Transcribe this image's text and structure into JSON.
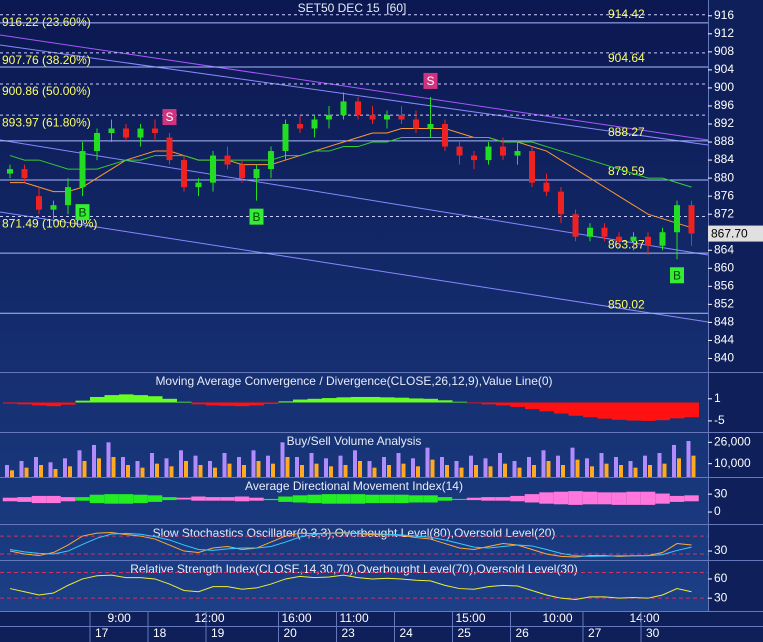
{
  "chart_data": [
    {
      "type": "candlestick",
      "title": "SET50 DEC 15  [60]",
      "categories": [
        null,
        null,
        null,
        null,
        null,
        null,
        null,
        "9:00",
        null,
        null,
        null,
        null,
        null,
        "12:00",
        null,
        null,
        null,
        null,
        null,
        "16:00",
        null,
        null,
        null,
        "11:00",
        null,
        null,
        null,
        null,
        null,
        null,
        null,
        "15:00",
        null,
        null,
        null,
        null,
        null,
        "10:00",
        null,
        null,
        null,
        null,
        null,
        "14:00",
        null,
        null,
        null,
        null
      ],
      "dates": [
        null,
        null,
        null,
        null,
        null,
        null,
        "17",
        null,
        null,
        null,
        "18",
        null,
        null,
        null,
        "19",
        null,
        null,
        null,
        null,
        "20",
        null,
        null,
        null,
        "23",
        null,
        null,
        null,
        "24",
        null,
        null,
        null,
        "25",
        null,
        null,
        null,
        "26",
        null,
        null,
        null,
        null,
        "27",
        null,
        null,
        null,
        "30",
        null,
        null,
        null
      ],
      "open": [
        881,
        882,
        876,
        873,
        874,
        878,
        886,
        890,
        891,
        889,
        891,
        889,
        884,
        878,
        879,
        885,
        883,
        880,
        882,
        886,
        892,
        891,
        893,
        894,
        897,
        894,
        893,
        894,
        893,
        891,
        892,
        887,
        885,
        884,
        887,
        885,
        886,
        879,
        877,
        872,
        867,
        869,
        867,
        866,
        867,
        865,
        868,
        874
      ],
      "high": [
        883,
        883,
        878,
        875,
        880,
        888,
        891,
        893,
        892,
        892,
        893,
        890,
        885,
        880,
        886,
        887,
        884,
        883,
        887,
        893,
        894,
        894,
        896,
        899,
        898,
        896,
        895,
        896,
        895,
        898,
        893,
        888,
        886,
        888,
        889,
        888,
        887,
        881,
        878,
        873,
        870,
        870,
        868,
        868,
        868,
        869,
        875,
        875
      ],
      "low": [
        880,
        879,
        872,
        871,
        872,
        876,
        884,
        888,
        888,
        887,
        888,
        883,
        877,
        876,
        877,
        882,
        879,
        875,
        880,
        884,
        890,
        889,
        891,
        893,
        893,
        892,
        891,
        892,
        890,
        889,
        886,
        883,
        882,
        883,
        884,
        883,
        878,
        876,
        870,
        866,
        866,
        866,
        865,
        864,
        863,
        864,
        862,
        865
      ],
      "close": [
        882,
        880,
        873,
        874,
        878,
        886,
        890,
        891,
        889,
        891,
        890,
        884,
        878,
        879,
        885,
        883,
        880,
        882,
        886,
        892,
        891,
        893,
        894,
        897,
        894,
        893,
        894,
        893,
        891,
        892,
        887,
        885,
        884,
        887,
        885,
        886,
        879,
        877,
        872,
        867,
        869,
        867,
        866,
        867,
        865,
        868,
        874,
        867.7
      ],
      "up_color": "#22dd22",
      "down_color": "#ee2222",
      "lines": [
        {
          "color": "#ff9933",
          "values": [
            879,
            879,
            878,
            877,
            877,
            878,
            880,
            882,
            884,
            885,
            886,
            886,
            885,
            884,
            884,
            884,
            883,
            883,
            883,
            884,
            885,
            886,
            887,
            888,
            889,
            890,
            890,
            891,
            891,
            891,
            891,
            890,
            889,
            889,
            888,
            888,
            887,
            886,
            884,
            882,
            880,
            878,
            876,
            874,
            872,
            871,
            870,
            869
          ]
        },
        {
          "color": "#33cc33",
          "values": [
            885,
            884,
            884,
            883,
            882,
            882,
            882,
            883,
            884,
            884,
            885,
            885,
            885,
            884,
            884,
            884,
            884,
            884,
            884,
            885,
            885,
            886,
            886,
            887,
            887,
            888,
            888,
            889,
            889,
            889,
            889,
            889,
            889,
            889,
            888,
            888,
            888,
            887,
            886,
            885,
            884,
            883,
            882,
            881,
            880,
            880,
            879,
            878
          ]
        }
      ],
      "signals": [
        null,
        null,
        null,
        null,
        null,
        "B",
        null,
        null,
        null,
        null,
        null,
        "S",
        null,
        null,
        null,
        null,
        null,
        "B",
        null,
        null,
        null,
        null,
        null,
        null,
        null,
        null,
        null,
        null,
        null,
        "S",
        null,
        null,
        null,
        null,
        null,
        null,
        null,
        null,
        null,
        null,
        null,
        null,
        null,
        null,
        null,
        null,
        "B",
        null
      ],
      "fib_levels": [
        {
          "value": 916.22,
          "label": "916.22 (23.60%)"
        },
        {
          "value": 907.76,
          "label": "907.76 (38.20%)"
        },
        {
          "value": 900.86,
          "label": "900.86 (50.00%)"
        },
        {
          "value": 893.97,
          "label": "893.97 (61.80%)"
        },
        {
          "value": 871.49,
          "label": "871.49 (100.00%)"
        }
      ],
      "levels": [
        914.42,
        904.64,
        888.27,
        879.59,
        863.37,
        850.02
      ],
      "last_price": {
        "value": 867.7,
        "label": "867.70"
      },
      "ylim": [
        837,
        919.5
      ],
      "yticks": [
        840,
        844,
        848,
        852,
        856,
        860,
        864,
        868,
        872,
        876,
        880,
        884,
        888,
        892,
        896,
        900,
        904,
        908,
        912,
        916
      ]
    },
    {
      "type": "bar",
      "title": "Moving Average Convergence / Divergence(CLOSE,26,12,9),Value Line(0)",
      "values": [
        -0.3,
        -0.5,
        -0.8,
        -1.0,
        -0.6,
        0.5,
        1.5,
        2.0,
        2.2,
        2.0,
        1.7,
        1.0,
        0.2,
        -0.5,
        -0.8,
        -0.9,
        -1.0,
        -0.8,
        -0.4,
        0.3,
        0.8,
        1.0,
        1.2,
        1.4,
        1.5,
        1.5,
        1.4,
        1.3,
        1.1,
        1.0,
        0.6,
        0.2,
        -0.2,
        -0.5,
        -0.8,
        -1.2,
        -1.8,
        -2.4,
        -3.0,
        -3.6,
        -4.0,
        -4.4,
        -4.7,
        -4.9,
        -5.0,
        -4.8,
        -4.3,
        -4.0
      ],
      "up_color": "#66ff22",
      "down_color": "#ff1111",
      "ylim": [
        -8,
        8
      ],
      "yticks": [
        1,
        -5
      ]
    },
    {
      "type": "grouped",
      "title": "Buy/Sell Volume Analysis",
      "series": [
        {
          "color": "#b28cff",
          "values": [
            9000,
            12000,
            15000,
            11000,
            14000,
            20000,
            24000,
            26000,
            15000,
            12000,
            18000,
            14000,
            20000,
            16000,
            12000,
            18000,
            15000,
            20000,
            16000,
            26000,
            15000,
            18000,
            14000,
            16000,
            20000,
            12000,
            15000,
            18000,
            14000,
            22000,
            15000,
            12000,
            16000,
            14000,
            18000,
            12000,
            15000,
            20000,
            16000,
            22000,
            14000,
            18000,
            15000,
            12000,
            16000,
            18000,
            24000,
            27000
          ]
        },
        {
          "color": "#ffaa22",
          "values": [
            5000,
            7000,
            9000,
            6000,
            8000,
            12000,
            14000,
            15000,
            9000,
            7000,
            10000,
            8000,
            12000,
            9000,
            7000,
            10000,
            9000,
            12000,
            10000,
            15000,
            9000,
            10000,
            8000,
            9000,
            12000,
            7000,
            9000,
            10000,
            8000,
            13000,
            9000,
            7000,
            9000,
            8000,
            10000,
            7000,
            9000,
            12000,
            9000,
            13000,
            8000,
            10000,
            9000,
            7000,
            9000,
            10000,
            14000,
            16000
          ]
        }
      ],
      "ylim": [
        0,
        33000
      ],
      "yticks": [
        {
          "value": 26000,
          "label": "26,000"
        },
        {
          "value": 10000,
          "label": "10,000"
        }
      ]
    },
    {
      "type": "band",
      "title": "Average Directional Movement Index(14)",
      "series": [
        {
          "color": "#22ee22",
          "values": [
            18,
            17,
            15,
            15,
            18,
            25,
            29,
            30,
            30,
            29,
            28,
            25,
            21,
            19,
            19,
            19,
            18,
            19,
            22,
            26,
            28,
            29,
            30,
            30,
            30,
            29,
            29,
            29,
            28,
            28,
            25,
            22,
            20,
            19,
            19,
            18,
            16,
            14,
            13,
            12,
            13,
            13,
            12,
            12,
            12,
            14,
            17,
            18
          ]
        },
        {
          "color": "#ff77dd",
          "values": [
            24,
            25,
            27,
            27,
            25,
            19,
            15,
            14,
            14,
            15,
            17,
            20,
            24,
            26,
            25,
            25,
            26,
            24,
            20,
            17,
            16,
            15,
            14,
            14,
            14,
            15,
            15,
            15,
            16,
            16,
            19,
            22,
            24,
            25,
            25,
            27,
            30,
            33,
            34,
            35,
            34,
            33,
            33,
            34,
            34,
            31,
            27,
            28
          ]
        }
      ],
      "ylim": [
        -20,
        57
      ],
      "yticks": [
        30,
        0
      ]
    },
    {
      "type": "line",
      "title": "Slow Stochastics Oscillater(9,3,3),Overbought Level(80),Oversold Level(20)",
      "series": [
        {
          "color": "#ffaa33",
          "values": [
            30,
            20,
            15,
            25,
            50,
            80,
            90,
            92,
            85,
            80,
            70,
            50,
            30,
            25,
            40,
            45,
            35,
            40,
            60,
            80,
            90,
            88,
            90,
            92,
            88,
            85,
            85,
            82,
            75,
            70,
            55,
            40,
            35,
            45,
            55,
            50,
            35,
            20,
            12,
            10,
            15,
            15,
            12,
            14,
            15,
            25,
            55,
            50
          ]
        },
        {
          "color": "#33ccff",
          "values": [
            35,
            27,
            22,
            20,
            30,
            52,
            73,
            87,
            89,
            86,
            78,
            67,
            50,
            35,
            32,
            37,
            40,
            40,
            45,
            60,
            77,
            86,
            89,
            90,
            90,
            88,
            86,
            84,
            80,
            76,
            67,
            55,
            43,
            40,
            45,
            50,
            47,
            35,
            22,
            14,
            12,
            13,
            14,
            14,
            14,
            18,
            32,
            43
          ]
        }
      ],
      "levels": [
        80,
        20
      ],
      "level_color": "#cc3366",
      "ylim": [
        0,
        117
      ],
      "yticks": [
        30
      ]
    },
    {
      "type": "line",
      "title": "Relative Strength Index(CLOSE,14,30,70),Overbought Level(70),Oversold Level(30)",
      "series": [
        {
          "color": "#eeee33",
          "values": [
            45,
            40,
            35,
            38,
            50,
            60,
            65,
            66,
            62,
            62,
            60,
            52,
            42,
            40,
            48,
            48,
            44,
            46,
            52,
            60,
            64,
            62,
            63,
            66,
            62,
            60,
            61,
            60,
            58,
            57,
            50,
            45,
            44,
            48,
            50,
            49,
            42,
            35,
            30,
            28,
            32,
            32,
            30,
            31,
            30,
            35,
            45,
            40
          ]
        }
      ],
      "levels": [
        70,
        30
      ],
      "level_color": "#cc3366",
      "ylim": [
        10,
        88
      ],
      "yticks": [
        60,
        30
      ]
    }
  ]
}
